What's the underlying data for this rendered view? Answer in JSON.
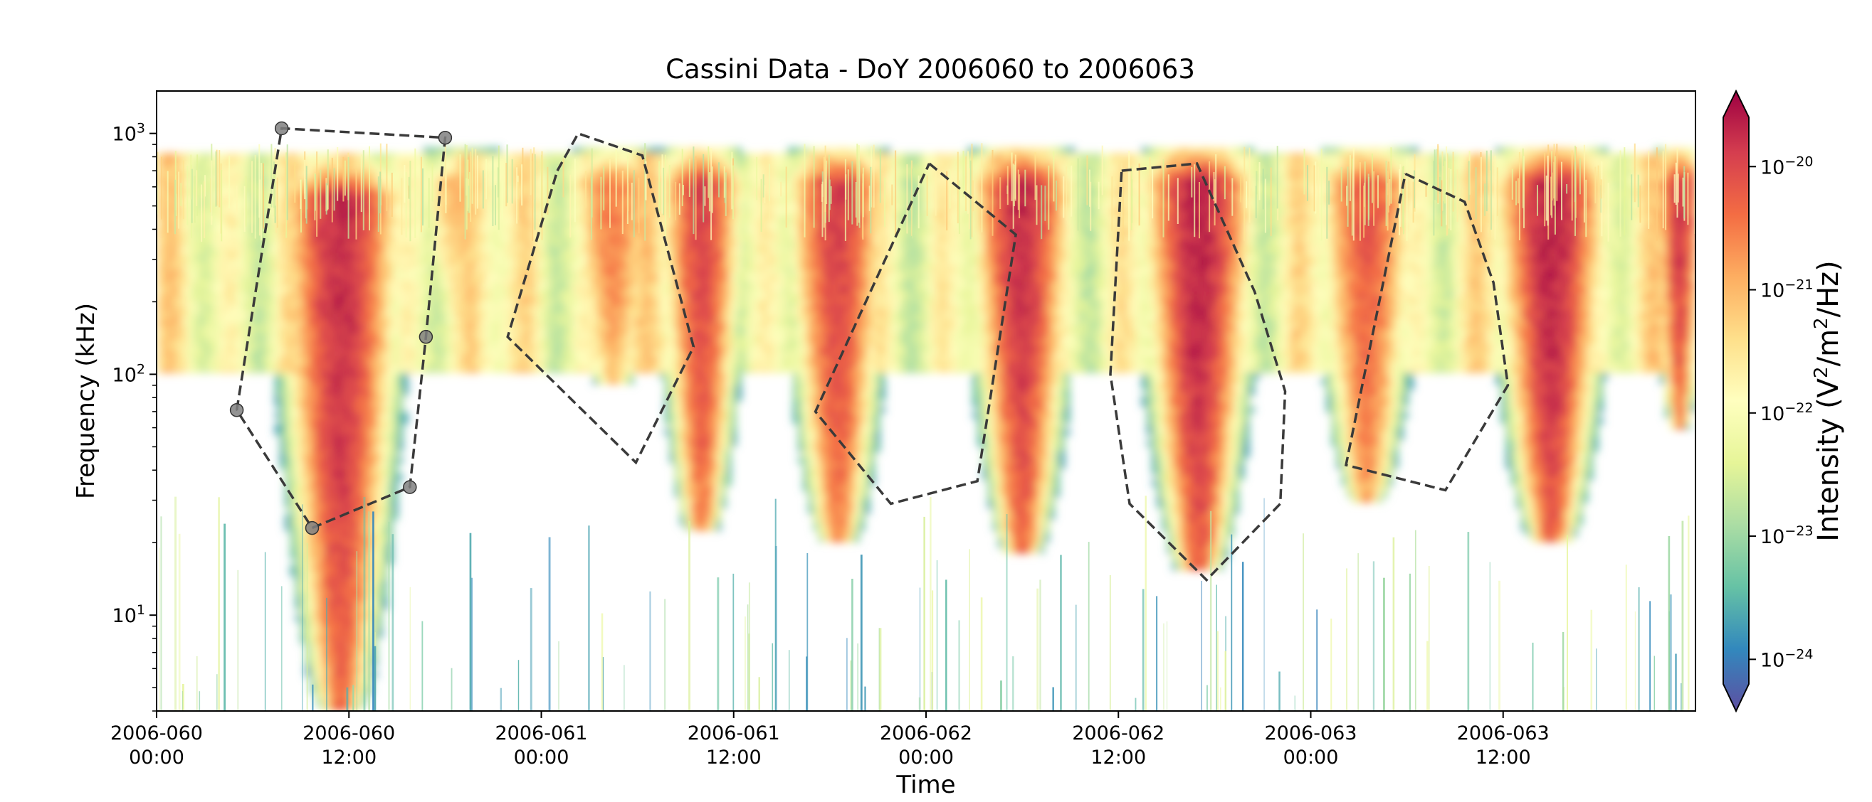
{
  "chart_data": {
    "type": "heatmap",
    "title": "Cassini Data - DoY 2006060 to 2006063",
    "xlabel": "Time",
    "ylabel": "Frequency (kHz)",
    "colorbar_label_parts": [
      "Intensity (V",
      "2",
      "/m",
      "2",
      "/Hz)"
    ],
    "y_scale": "log",
    "ylim": [
      4,
      1500
    ],
    "xlim_hours": [
      0,
      96
    ],
    "x_ticks": [
      {
        "hour": 0,
        "date": "2006-060",
        "time": "00:00"
      },
      {
        "hour": 12,
        "date": "2006-060",
        "time": "12:00"
      },
      {
        "hour": 24,
        "date": "2006-061",
        "time": "00:00"
      },
      {
        "hour": 36,
        "date": "2006-061",
        "time": "12:00"
      },
      {
        "hour": 48,
        "date": "2006-062",
        "time": "00:00"
      },
      {
        "hour": 60,
        "date": "2006-062",
        "time": "12:00"
      },
      {
        "hour": 72,
        "date": "2006-063",
        "time": "00:00"
      },
      {
        "hour": 84,
        "date": "2006-063",
        "time": "12:00"
      }
    ],
    "y_ticks": [
      {
        "value": 10,
        "base": "10",
        "exp": "1"
      },
      {
        "value": 100,
        "base": "10",
        "exp": "2"
      },
      {
        "value": 1000,
        "base": "10",
        "exp": "3"
      }
    ],
    "colorbar_ticks": [
      {
        "value": -20,
        "base": "10",
        "exp": "−20"
      },
      {
        "value": -21,
        "base": "10",
        "exp": "−21"
      },
      {
        "value": -22,
        "base": "10",
        "exp": "−22"
      },
      {
        "value": -23,
        "base": "10",
        "exp": "−23"
      },
      {
        "value": -24,
        "base": "10",
        "exp": "−24"
      }
    ],
    "colorbar_range_log10": [
      -24.2,
      -19.6
    ],
    "colormap": [
      "#5e4fa2",
      "#3288bd",
      "#66c2a5",
      "#abdda4",
      "#e6f598",
      "#ffffbf",
      "#fee08b",
      "#fdae61",
      "#f46d43",
      "#d53e4f",
      "#9e0142"
    ],
    "bursts": [
      {
        "center_hour": 11.5,
        "width_hours": 7,
        "fmin": 4,
        "fmax": 700,
        "peak": -19.9
      },
      {
        "center_hour": 19,
        "width_hours": 6,
        "fmin": 180,
        "fmax": 800,
        "peak": -21.0
      },
      {
        "center_hour": 28.5,
        "width_hours": 6,
        "fmin": 90,
        "fmax": 800,
        "peak": -20.6
      },
      {
        "center_hour": 34,
        "width_hours": 5,
        "fmin": 22,
        "fmax": 800,
        "peak": -20.1
      },
      {
        "center_hour": 42.5,
        "width_hours": 6,
        "fmin": 20,
        "fmax": 800,
        "peak": -20.1
      },
      {
        "center_hour": 54,
        "width_hours": 6,
        "fmin": 18,
        "fmax": 800,
        "peak": -19.9
      },
      {
        "center_hour": 65,
        "width_hours": 6.5,
        "fmin": 15,
        "fmax": 800,
        "peak": -19.8
      },
      {
        "center_hour": 75.5,
        "width_hours": 6,
        "fmin": 30,
        "fmax": 800,
        "peak": -20.3
      },
      {
        "center_hour": 87,
        "width_hours": 6.5,
        "fmin": 20,
        "fmax": 800,
        "peak": -19.8
      },
      {
        "center_hour": 95,
        "width_hours": 3,
        "fmin": 60,
        "fmax": 800,
        "peak": -20.0
      }
    ],
    "polygons": [
      {
        "markers": true,
        "points": [
          [
            5,
            71
          ],
          [
            7.8,
            1050
          ],
          [
            18,
            960
          ],
          [
            16.8,
            143
          ],
          [
            15.8,
            34
          ],
          [
            9.7,
            23
          ],
          [
            5,
            71
          ]
        ]
      },
      {
        "markers": false,
        "points": [
          [
            25,
            700
          ],
          [
            26.3,
            1000
          ],
          [
            30.3,
            810
          ],
          [
            33.5,
            130
          ],
          [
            29.9,
            43
          ],
          [
            21.9,
            143
          ],
          [
            25,
            700
          ]
        ]
      },
      {
        "markers": false,
        "points": [
          [
            48.2,
            750
          ],
          [
            53.6,
            380
          ],
          [
            51.2,
            36
          ],
          [
            45.8,
            29
          ],
          [
            41.1,
            70
          ],
          [
            48.2,
            750
          ]
        ]
      },
      {
        "markers": false,
        "points": [
          [
            60.2,
            700
          ],
          [
            64.9,
            750
          ],
          [
            68.5,
            220
          ],
          [
            70.4,
            85
          ],
          [
            70.1,
            29
          ],
          [
            65.5,
            14
          ],
          [
            60.7,
            29
          ],
          [
            59.5,
            100
          ],
          [
            60.2,
            700
          ]
        ]
      },
      {
        "markers": false,
        "points": [
          [
            77.9,
            680
          ],
          [
            81.6,
            520
          ],
          [
            83.4,
            240
          ],
          [
            84.3,
            90
          ],
          [
            80.4,
            33
          ],
          [
            74.2,
            42
          ],
          [
            77.9,
            680
          ]
        ]
      }
    ]
  }
}
